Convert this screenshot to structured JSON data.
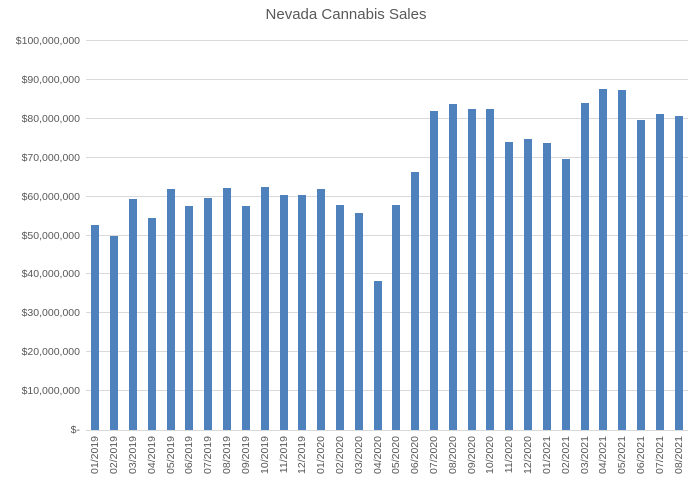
{
  "chart_data": {
    "type": "bar",
    "title": "Nevada Cannabis Sales",
    "xlabel": "",
    "ylabel": "",
    "categories": [
      "01/2019",
      "02/2019",
      "03/2019",
      "04/2019",
      "05/2019",
      "06/2019",
      "07/2019",
      "08/2019",
      "09/2019",
      "10/2019",
      "11/2019",
      "12/2019",
      "01/2020",
      "02/2020",
      "03/2020",
      "04/2020",
      "05/2020",
      "06/2020",
      "07/2020",
      "08/2020",
      "09/2020",
      "10/2020",
      "11/2020",
      "12/2020",
      "01/2021",
      "02/2021",
      "03/2021",
      "04/2021",
      "05/2021",
      "06/2021",
      "07/2021",
      "08/2021"
    ],
    "values": [
      52600000,
      50000000,
      59500000,
      54500000,
      61900000,
      57700000,
      59700000,
      62300000,
      57700000,
      62400000,
      60400000,
      60300000,
      62000000,
      57800000,
      55800000,
      38300000,
      57900000,
      66400000,
      82000000,
      83900000,
      82500000,
      82400000,
      74000000,
      74900000,
      73800000,
      69600000,
      84100000,
      87600000,
      87300000,
      79600000,
      81200000,
      80600000
    ],
    "ylim": [
      0,
      100000000
    ],
    "ytick_step": 10000000,
    "ytick_labels": [
      "$-",
      "$10,000,000",
      "$20,000,000",
      "$30,000,000",
      "$40,000,000",
      "$50,000,000",
      "$60,000,000",
      "$70,000,000",
      "$80,000,000",
      "$90,000,000",
      "$100,000,000"
    ],
    "grid": true,
    "legend": false
  },
  "colors": {
    "bar": "#4F81BD",
    "gridline": "#D9D9D9",
    "axis_line": "#D9D9D9",
    "text": "#595959",
    "background": "#FFFFFF"
  }
}
